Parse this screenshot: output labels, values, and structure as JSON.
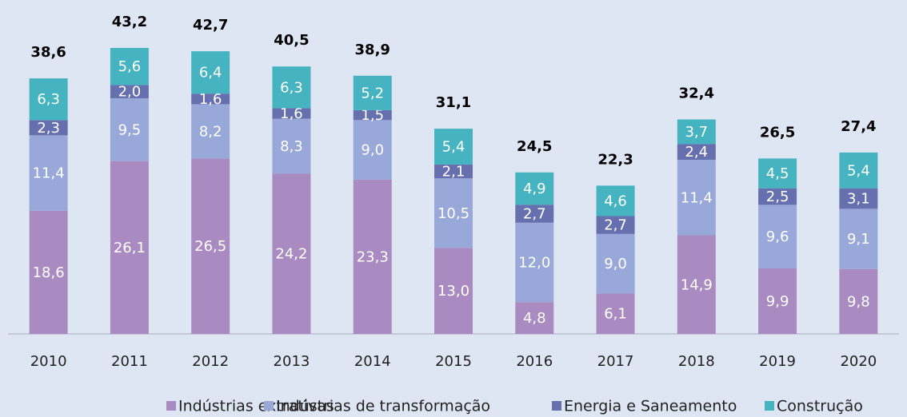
{
  "chart_data": {
    "type": "stacked_bar",
    "categories": [
      "2010",
      "2011",
      "2012",
      "2013",
      "2014",
      "2015",
      "2016",
      "2017",
      "2018",
      "2019",
      "2020"
    ],
    "series": [
      {
        "name": "Indústrias extrativas",
        "color": "#a98bc1",
        "values": [
          18.6,
          26.1,
          26.5,
          24.2,
          23.3,
          13.0,
          4.8,
          6.1,
          14.9,
          9.9,
          9.8
        ],
        "value_labels": [
          "18,6",
          "26,1",
          "26,5",
          "24,2",
          "23,3",
          "13,0",
          "4,8",
          "6,1",
          "14,9",
          "9,9",
          "9,8"
        ]
      },
      {
        "name": "Indústrias de transformação",
        "color": "#98a8d8",
        "values": [
          11.4,
          9.5,
          8.2,
          8.3,
          9.0,
          10.5,
          12.0,
          9.0,
          11.4,
          9.6,
          9.1
        ],
        "value_labels": [
          "11,4",
          "9,5",
          "8,2",
          "8,3",
          "9,0",
          "10,5",
          "12,0",
          "9,0",
          "11,4",
          "9,6",
          "9,1"
        ]
      },
      {
        "name": "Energia e Saneamento",
        "color": "#6670ae",
        "values": [
          2.3,
          2.0,
          1.6,
          1.6,
          1.5,
          2.1,
          2.7,
          2.7,
          2.4,
          2.5,
          3.1
        ],
        "value_labels": [
          "2,3",
          "2,0",
          "1,6",
          "1,6",
          "1,5",
          "2,1",
          "2,7",
          "2,7",
          "2,4",
          "2,5",
          "3,1"
        ]
      },
      {
        "name": "Construção",
        "color": "#45b3c0",
        "values": [
          6.3,
          5.6,
          6.4,
          6.3,
          5.2,
          5.4,
          4.9,
          4.6,
          3.7,
          4.5,
          5.4
        ],
        "value_labels": [
          "6,3",
          "5,6",
          "6,4",
          "6,3",
          "5,2",
          "5,4",
          "4,9",
          "4,6",
          "3,7",
          "4,5",
          "5,4"
        ]
      }
    ],
    "totals": [
      38.6,
      43.2,
      42.7,
      40.5,
      38.9,
      31.1,
      24.5,
      22.3,
      32.4,
      26.5,
      27.4
    ],
    "total_labels": [
      "38,6",
      "43,2",
      "42,7",
      "40,5",
      "38,9",
      "31,1",
      "24,5",
      "22,3",
      "32,4",
      "26,5",
      "27,4"
    ],
    "legend": "bottom"
  }
}
